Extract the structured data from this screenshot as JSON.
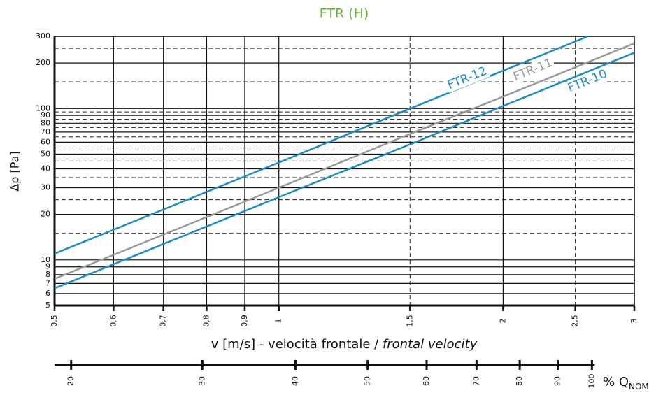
{
  "chart_data": {
    "type": "line",
    "title": "FTR (H)",
    "x_label": "v [m/s] - velocità frontale / ",
    "x_label_italic": "frontal velocity",
    "y_label": "Δp [Pa]",
    "log_x": true,
    "log_y": true,
    "xlim": [
      0.5,
      3
    ],
    "ylim": [
      5,
      300
    ],
    "xticks": [
      {
        "value": 0.5,
        "label": "0,5"
      },
      {
        "value": 0.6,
        "label": "0,6"
      },
      {
        "value": 0.7,
        "label": "0,7"
      },
      {
        "value": 0.8,
        "label": "0,8"
      },
      {
        "value": 0.9,
        "label": "0,9"
      },
      1,
      {
        "value": 1.5,
        "label": "1,5"
      },
      2,
      {
        "value": 2.5,
        "label": "2,5"
      },
      3
    ],
    "x_dashed_grid": [
      1.5,
      2.5
    ],
    "yticks": [
      5,
      6,
      7,
      8,
      9,
      10,
      20,
      30,
      40,
      50,
      60,
      70,
      80,
      90,
      100,
      200,
      300
    ],
    "y_dashed_grid": [
      15,
      25,
      35,
      45,
      55,
      65,
      75,
      85,
      95,
      150,
      250
    ],
    "series": [
      {
        "name": "FTR-12",
        "color": "#1a8cc8",
        "x": [
          0.5,
          1,
          1.5,
          2,
          2.6
        ],
        "values": [
          11,
          44,
          100,
          178,
          300
        ]
      },
      {
        "name": "FTR-11",
        "color": "#999999",
        "x": [
          0.5,
          1,
          1.5,
          2,
          3
        ],
        "values": [
          7.5,
          30,
          68,
          120,
          270
        ]
      },
      {
        "name": "FTR-10",
        "color": "#1a8cc8",
        "x": [
          0.5,
          1,
          1.5,
          2,
          3
        ],
        "values": [
          6.5,
          26,
          58,
          104,
          234
        ]
      }
    ],
    "x2_label": "% Q",
    "x2_label_sub": "NOM",
    "x2lim": [
      19,
      114
    ],
    "x2ticks": [
      20,
      30,
      40,
      50,
      60,
      70,
      80,
      90,
      100
    ]
  }
}
